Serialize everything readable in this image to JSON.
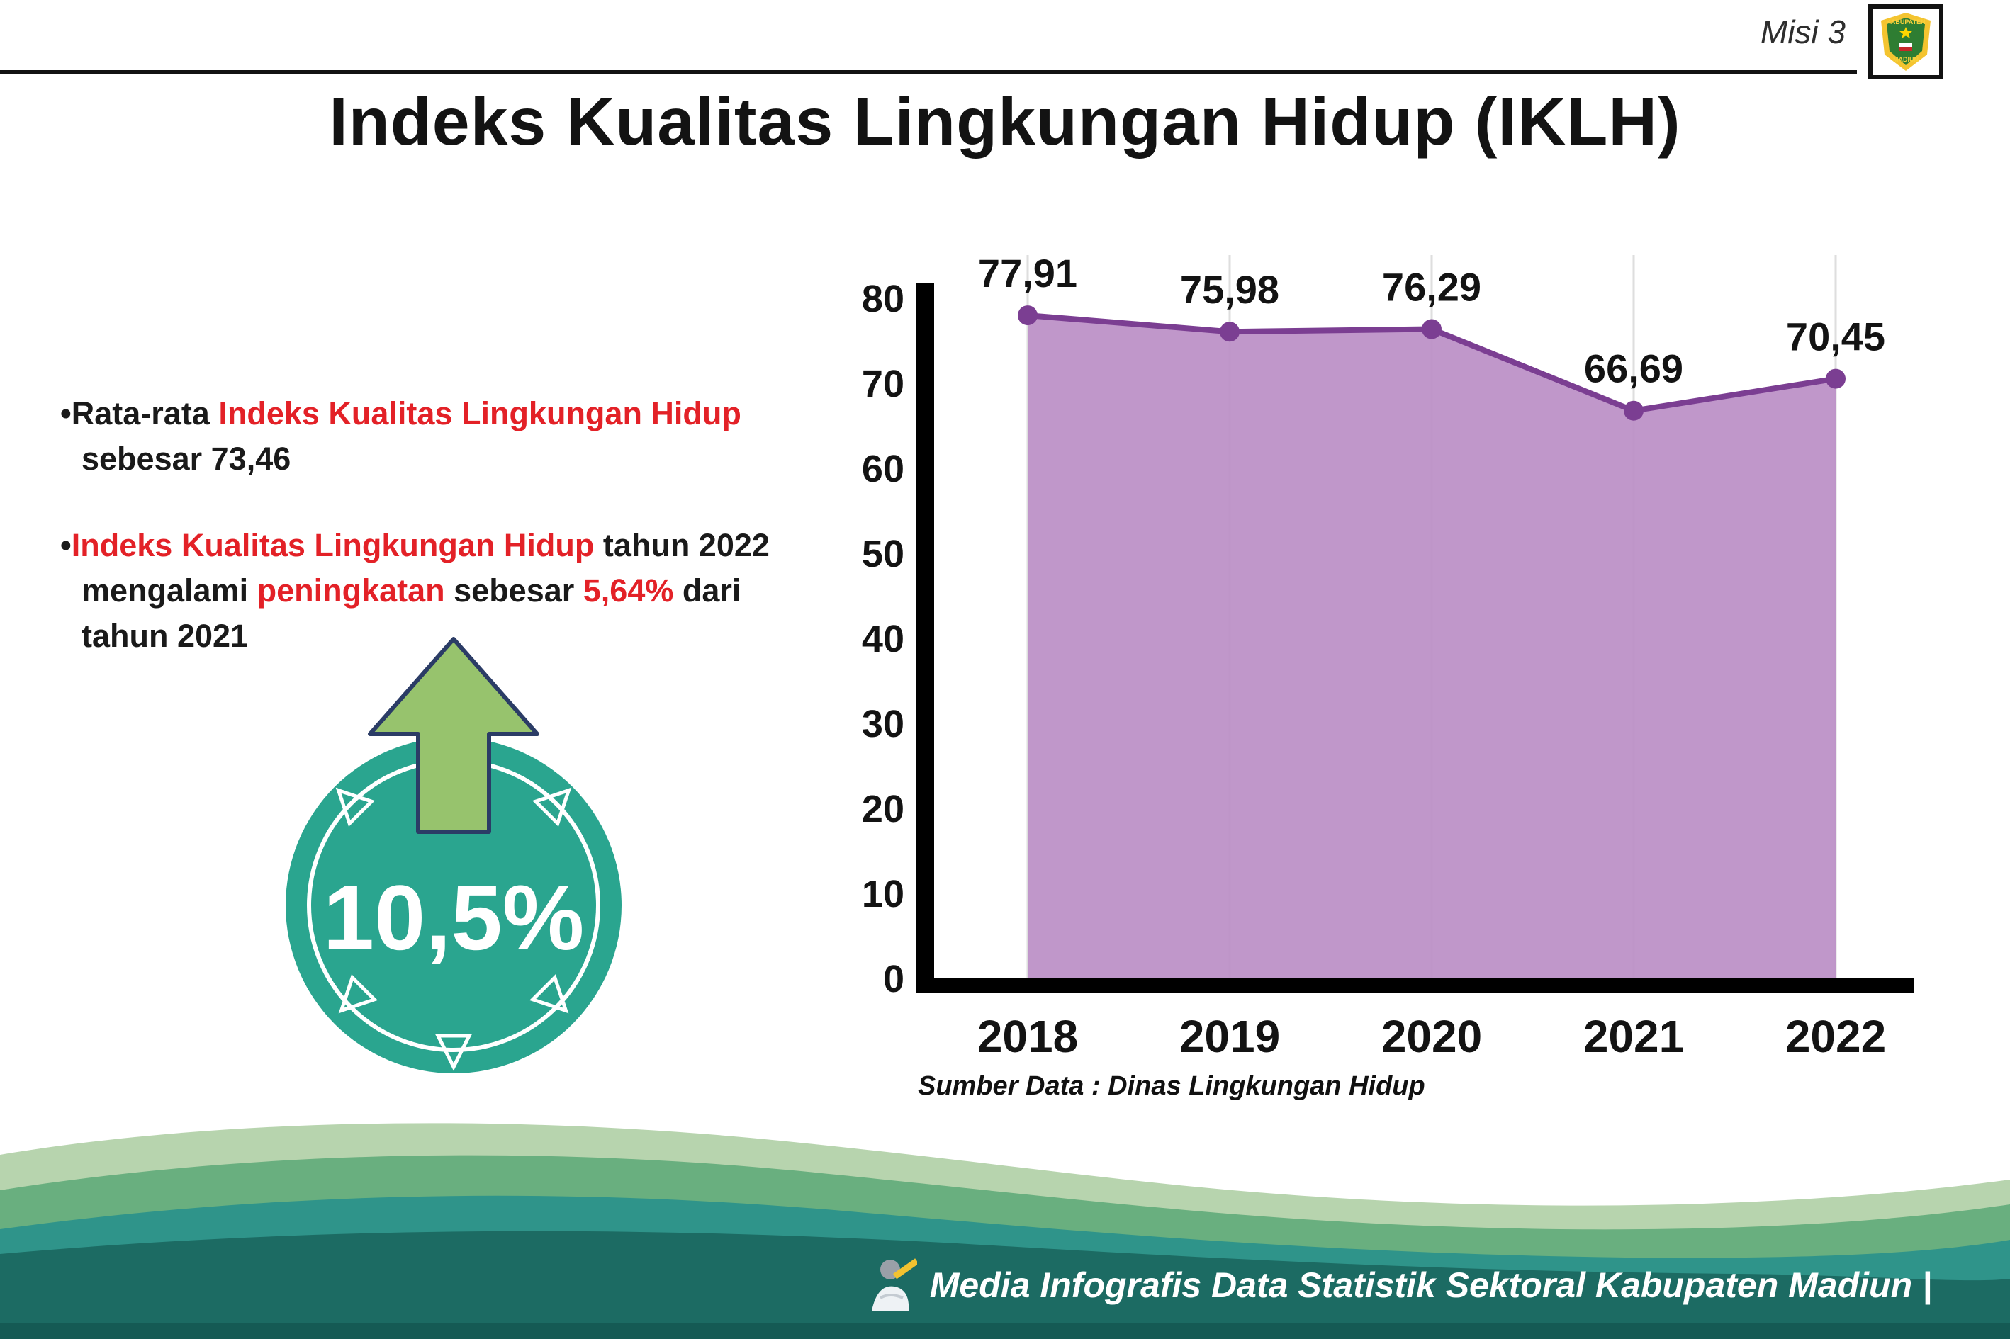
{
  "header": {
    "misi_label": "Misi 3",
    "title": "Indeks Kualitas Lingkungan Hidup (IKLH)"
  },
  "logo": {
    "region_top": "KABUPATEN",
    "region_bottom": "MADIUN"
  },
  "bullets": {
    "b1": {
      "s1": "•Rata-rata ",
      "s2": "Indeks Kualitas Lingkungan Hidup",
      "s3": " sebesar 73,46"
    },
    "b2": {
      "s1": "•",
      "s2": "Indeks Kualitas Lingkungan Hidup",
      "s3": " tahun 2022 mengalami ",
      "s4": "peningkatan",
      "s5": " sebesar ",
      "s6": "5,64%",
      "s7": " dari tahun 2021"
    }
  },
  "badge": {
    "value": "10,5%"
  },
  "colors": {
    "red_accent": "#e32127",
    "badge_teal": "#2aa58f",
    "arrow_green": "#97c36d",
    "footer_dark_teal": "#1c6b63"
  },
  "chart_data": {
    "type": "area",
    "title": "Indeks Kualitas Lingkungan Hidup (IKLH)",
    "categories": [
      "2018",
      "2019",
      "2020",
      "2021",
      "2022"
    ],
    "values": [
      77.91,
      75.98,
      76.29,
      66.69,
      70.45
    ],
    "value_labels": [
      "77,91",
      "75,98",
      "76,29",
      "66,69",
      "70,45"
    ],
    "ylim": [
      0,
      80
    ],
    "yticks": [
      0,
      10,
      20,
      30,
      40,
      50,
      60,
      70,
      80
    ],
    "grid": "vertical",
    "legend": "none",
    "source": "Sumber Data : Dinas Lingkungan Hidup",
    "colors": {
      "fill": "#bb8ec5",
      "line": "#7b3e92",
      "marker": "#7b3e92"
    }
  },
  "footer": {
    "credit": "Media Infografis Data Statistik Sektoral Kabupaten Madiun |"
  }
}
